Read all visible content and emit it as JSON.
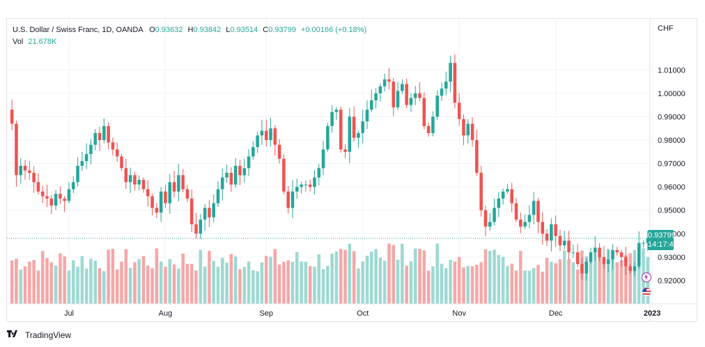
{
  "legend": {
    "symbol": "U.S. Dollar / Swiss Franc, 1D, OANDA",
    "o_label": "O",
    "o_value": "0.93632",
    "h_label": "H",
    "h_value": "0.93842",
    "l_label": "L",
    "l_value": "0.93514",
    "c_label": "C",
    "c_value": "0.93799",
    "change": "+0.00166 (+0.18%)",
    "vol_label": "Vol",
    "vol_value": "21.678K"
  },
  "axis": {
    "currency": "CHF"
  },
  "price_tag": {
    "price": "0.93799",
    "countdown": "14:17:45"
  },
  "footer": {
    "brand": "TradingView"
  },
  "colors": {
    "up": "#26a69a",
    "down": "#ef5350",
    "vol_up": "#9ed9d2",
    "vol_down": "#f5a7a7",
    "grid": "#f0f3fa"
  },
  "icons": [
    "tradingview-logo-icon",
    "lightning-icon",
    "us-flag-icon"
  ],
  "chart_data": {
    "type": "candlestick",
    "ylim": [
      0.91,
      1.025
    ],
    "y_ticks": [
      "1.01000",
      "1.00000",
      "0.99000",
      "0.98000",
      "0.97000",
      "0.96000",
      "0.95000",
      "0.94000",
      "0.93000",
      "0.92000"
    ],
    "y_tick_values": [
      1.01,
      1.0,
      0.99,
      0.98,
      0.97,
      0.96,
      0.95,
      0.94,
      0.93,
      0.92
    ],
    "x_ticks": [
      {
        "label": "Jul",
        "index": 13
      },
      {
        "label": "Aug",
        "index": 35
      },
      {
        "label": "Sep",
        "index": 58
      },
      {
        "label": "Oct",
        "index": 80
      },
      {
        "label": "Nov",
        "index": 102
      },
      {
        "label": "Dec",
        "index": 124
      },
      {
        "label": "2023",
        "index": 146
      }
    ],
    "last_price": 0.93799,
    "closes": [
      0.987,
      0.965,
      0.969,
      0.967,
      0.966,
      0.962,
      0.958,
      0.956,
      0.955,
      0.952,
      0.957,
      0.955,
      0.954,
      0.959,
      0.962,
      0.969,
      0.971,
      0.974,
      0.978,
      0.983,
      0.98,
      0.986,
      0.979,
      0.976,
      0.973,
      0.968,
      0.962,
      0.965,
      0.961,
      0.963,
      0.959,
      0.956,
      0.951,
      0.949,
      0.958,
      0.953,
      0.962,
      0.958,
      0.965,
      0.959,
      0.955,
      0.944,
      0.94,
      0.946,
      0.951,
      0.947,
      0.953,
      0.959,
      0.964,
      0.966,
      0.961,
      0.969,
      0.965,
      0.968,
      0.973,
      0.977,
      0.982,
      0.984,
      0.98,
      0.985,
      0.978,
      0.972,
      0.958,
      0.951,
      0.958,
      0.96,
      0.961,
      0.961,
      0.96,
      0.964,
      0.968,
      0.976,
      0.986,
      0.992,
      0.993,
      0.976,
      0.975,
      0.99,
      0.981,
      0.983,
      0.988,
      0.993,
      0.997,
      1.0,
      1.003,
      1.006,
      1.005,
      0.994,
      1.001,
      1.004,
      0.995,
      0.998,
      1.0,
      0.998,
      0.986,
      0.983,
      0.99,
      0.999,
      1.002,
      1.005,
      1.013,
      0.996,
      0.989,
      0.982,
      0.987,
      0.98,
      0.966,
      0.95,
      0.943,
      0.945,
      0.951,
      0.955,
      0.958,
      0.959,
      0.953,
      0.946,
      0.943,
      0.945,
      0.948,
      0.954,
      0.945,
      0.94,
      0.937,
      0.944,
      0.939,
      0.935,
      0.937,
      0.932,
      0.932,
      0.927,
      0.923,
      0.928,
      0.932,
      0.934,
      0.93,
      0.927,
      0.929,
      0.933,
      0.932,
      0.93,
      0.926,
      0.924,
      0.926,
      0.936,
      0.936,
      0.938
    ]
  }
}
